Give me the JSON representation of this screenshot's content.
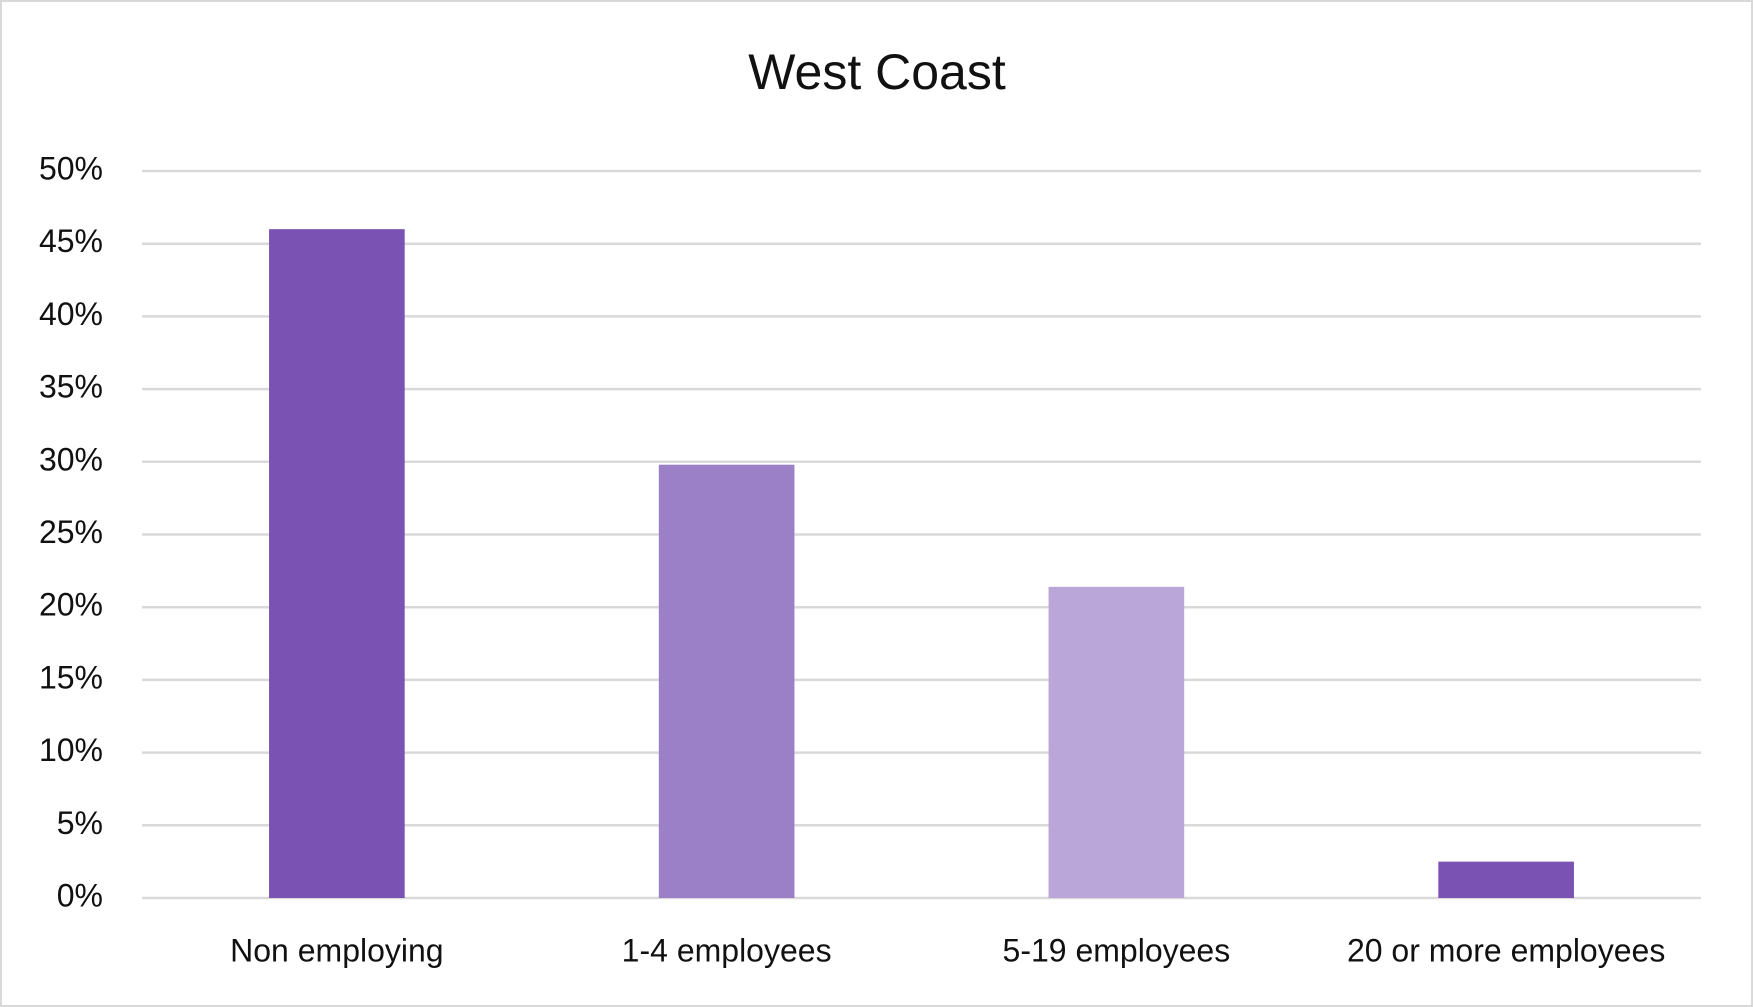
{
  "chart_data": {
    "type": "bar",
    "title": "West Coast",
    "categories": [
      "Non employing",
      "1-4 employees",
      "5-19 employees",
      "20 or more employees"
    ],
    "values": [
      46,
      29.8,
      21.4,
      2.5
    ],
    "colors": [
      "#7952b3",
      "#9b7fc7",
      "#baa6d8",
      "#7952b3"
    ],
    "ylim": [
      0,
      50
    ],
    "yticks": [
      {
        "value": 0,
        "label": "0%"
      },
      {
        "value": 5,
        "label": "5%"
      },
      {
        "value": 10,
        "label": "10%"
      },
      {
        "value": 15,
        "label": "15%"
      },
      {
        "value": 20,
        "label": "20%"
      },
      {
        "value": 25,
        "label": "25%"
      },
      {
        "value": 30,
        "label": "30%"
      },
      {
        "value": 35,
        "label": "35%"
      },
      {
        "value": 40,
        "label": "40%"
      },
      {
        "value": 45,
        "label": "45%"
      },
      {
        "value": 50,
        "label": "50%"
      }
    ],
    "grid": true
  }
}
